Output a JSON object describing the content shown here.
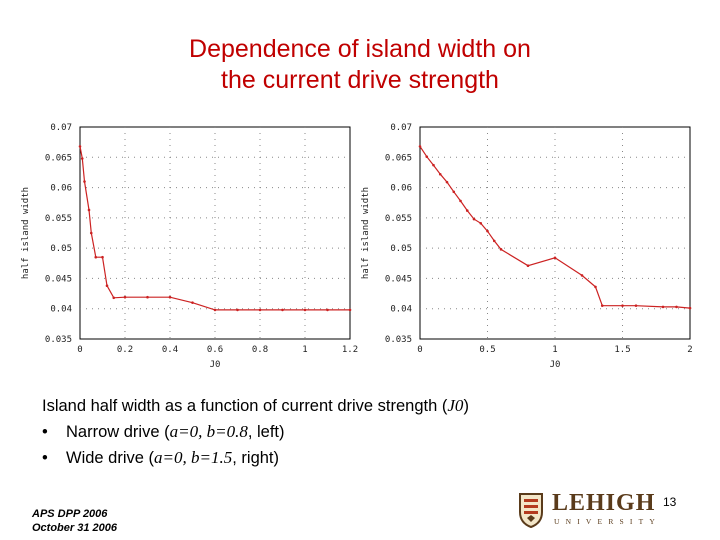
{
  "title": {
    "line1": "Dependence of island width on",
    "line2": "the current drive strength"
  },
  "chart_data": [
    {
      "type": "line",
      "xlabel": "J0",
      "ylabel": "half island width",
      "xlim": [
        0,
        1.2
      ],
      "ylim": [
        0.035,
        0.07
      ],
      "x_ticks": [
        "0",
        "0.2",
        "0.4",
        "0.6",
        "0.8",
        "1",
        "1.2"
      ],
      "y_ticks": [
        "0.07",
        "0.065",
        "0.06",
        "0.055",
        "0.05",
        "0.045",
        "0.04",
        "0.035"
      ],
      "grid": true,
      "color": "#cc2222",
      "x": [
        0,
        0.01,
        0.02,
        0.04,
        0.05,
        0.07,
        0.1,
        0.12,
        0.15,
        0.2,
        0.3,
        0.4,
        0.5,
        0.6,
        0.7,
        0.8,
        0.9,
        1.0,
        1.1,
        1.2
      ],
      "y": [
        0.0668,
        0.0648,
        0.061,
        0.0563,
        0.0525,
        0.0485,
        0.0485,
        0.0438,
        0.0418,
        0.0419,
        0.0419,
        0.0419,
        0.041,
        0.0398,
        0.0398,
        0.0398,
        0.0398,
        0.0398,
        0.0398,
        0.0398
      ]
    },
    {
      "type": "line",
      "xlabel": "J0",
      "ylabel": "half island width",
      "xlim": [
        0,
        2
      ],
      "ylim": [
        0.035,
        0.07
      ],
      "x_ticks": [
        "0",
        "0.5",
        "1",
        "1.5",
        "2"
      ],
      "y_ticks": [
        "0.07",
        "0.065",
        "0.06",
        "0.055",
        "0.05",
        "0.045",
        "0.04",
        "0.035"
      ],
      "grid": true,
      "color": "#cc2222",
      "x": [
        0,
        0.05,
        0.1,
        0.15,
        0.2,
        0.25,
        0.3,
        0.35,
        0.4,
        0.45,
        0.5,
        0.55,
        0.6,
        0.8,
        1.0,
        1.2,
        1.3,
        1.35,
        1.5,
        1.6,
        1.8,
        1.9,
        2.0
      ],
      "y": [
        0.0668,
        0.0651,
        0.0637,
        0.0622,
        0.0609,
        0.0593,
        0.0578,
        0.0562,
        0.0548,
        0.0541,
        0.0528,
        0.0512,
        0.0498,
        0.0471,
        0.0484,
        0.0455,
        0.0436,
        0.0405,
        0.0405,
        0.0405,
        0.0403,
        0.0403,
        0.0401
      ]
    }
  ],
  "caption": {
    "line1_a": "Island half width as a function of current drive strength (",
    "line1_var": "J0",
    "line1_b": ")",
    "bullet": "•",
    "item1_a": "Narrow drive (",
    "item1_v1": "a",
    "item1_eq1": "=0, ",
    "item1_v2": "b",
    "item1_eq2": "=0.8",
    "item1_b": ", left)",
    "item2_a": "Wide drive (",
    "item2_v1": "a",
    "item2_eq1": "=0, ",
    "item2_v2": "b",
    "item2_eq2": "=1.5",
    "item2_b": ", right)"
  },
  "footer": {
    "line1": "APS DPP 2006",
    "line2": "October 31 2006"
  },
  "page_number": "13",
  "logo": {
    "name": "LEHIGH",
    "subtitle": "UNIVERSITY",
    "color": "#5a3b1b",
    "icon": "shield-crest-icon"
  }
}
